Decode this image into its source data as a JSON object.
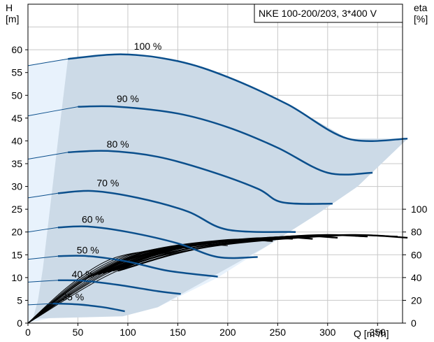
{
  "chart_data": {
    "type": "line",
    "title": "NKE 100-200/203, 3*400 V",
    "xlabel": "Q [m³/h]",
    "ylabel_left_top": "H",
    "ylabel_left_unit": "[m]",
    "ylabel_right_top": "eta",
    "ylabel_right_unit": "[%]",
    "xlim": [
      0,
      375
    ],
    "ylim": [
      0,
      70
    ],
    "eta_lim": [
      0,
      100
    ],
    "grid": true,
    "x_ticks": [
      "0",
      "50",
      "100",
      "150",
      "200",
      "250",
      "300",
      "350"
    ],
    "y_ticks": [
      "0",
      "5",
      "10",
      "15",
      "20",
      "25",
      "30",
      "35",
      "40",
      "45",
      "50",
      "55",
      "60"
    ],
    "eta_ticks": [
      "0",
      "20",
      "40",
      "60",
      "80",
      "100"
    ],
    "operating_area": {
      "outer_boundary": [
        [
          0,
          0
        ],
        [
          0,
          56.5
        ],
        [
          40,
          58
        ],
        [
          95,
          59
        ],
        [
          150,
          57.5
        ],
        [
          200,
          54
        ],
        [
          260,
          48
        ],
        [
          320,
          40.5
        ],
        [
          380,
          40.5
        ],
        [
          330,
          30
        ],
        [
          290,
          24
        ],
        [
          240,
          17
        ],
        [
          190,
          10
        ],
        [
          130,
          3.5
        ],
        [
          95,
          1.5
        ],
        [
          30,
          1.5
        ]
      ],
      "inner_boundary": [
        [
          40,
          58
        ],
        [
          30,
          40
        ],
        [
          22,
          25
        ],
        [
          15,
          12
        ],
        [
          10,
          5
        ],
        [
          5,
          1
        ]
      ]
    },
    "series": [
      {
        "name": "100 %",
        "label": "100 %",
        "points": [
          [
            0,
            56.5
          ],
          [
            40,
            58
          ],
          [
            95,
            59
          ],
          [
            150,
            57.5
          ],
          [
            200,
            54
          ],
          [
            260,
            48
          ],
          [
            320,
            40.5
          ],
          [
            380,
            40.5
          ]
        ]
      },
      {
        "name": "90 %",
        "label": "90 %",
        "points": [
          [
            0,
            45.5
          ],
          [
            50,
            47.5
          ],
          [
            90,
            47.5
          ],
          [
            150,
            46
          ],
          [
            200,
            43
          ],
          [
            250,
            38.5
          ],
          [
            300,
            33
          ],
          [
            345,
            33
          ]
        ]
      },
      {
        "name": "80 %",
        "label": "80 %",
        "points": [
          [
            0,
            36
          ],
          [
            40,
            37.5
          ],
          [
            80,
            37.8
          ],
          [
            130,
            36.5
          ],
          [
            180,
            33.5
          ],
          [
            230,
            29.5
          ],
          [
            255,
            26.5
          ],
          [
            305,
            26.2
          ]
        ]
      },
      {
        "name": "70 %",
        "label": "70 %",
        "points": [
          [
            0,
            27.5
          ],
          [
            30,
            28.5
          ],
          [
            65,
            29
          ],
          [
            110,
            27.5
          ],
          [
            160,
            24.5
          ],
          [
            200,
            20.5
          ],
          [
            268,
            20
          ]
        ]
      },
      {
        "name": "60 %",
        "label": "60 %",
        "points": [
          [
            0,
            20
          ],
          [
            30,
            21
          ],
          [
            60,
            21.2
          ],
          [
            100,
            20
          ],
          [
            150,
            17.5
          ],
          [
            190,
            14.5
          ],
          [
            230,
            14.5
          ]
        ]
      },
      {
        "name": "50 %",
        "label": "50 %",
        "points": [
          [
            0,
            14
          ],
          [
            30,
            14.7
          ],
          [
            60,
            14.7
          ],
          [
            100,
            13.5
          ],
          [
            140,
            11.5
          ],
          [
            190,
            10.2
          ]
        ]
      },
      {
        "name": "40 %",
        "label": "40 %",
        "points": [
          [
            0,
            9
          ],
          [
            30,
            9.4
          ],
          [
            55,
            9.3
          ],
          [
            90,
            8.4
          ],
          [
            130,
            7
          ],
          [
            153,
            6.4
          ]
        ]
      },
      {
        "name": "35 %",
        "label": "35 %",
        "points": [
          [
            0,
            4
          ],
          [
            25,
            4.3
          ],
          [
            50,
            4.1
          ],
          [
            75,
            3.5
          ],
          [
            97,
            2.6
          ]
        ]
      }
    ],
    "efficiency_curves": [
      {
        "points": [
          [
            0,
            0
          ],
          [
            40,
            32
          ],
          [
            80,
            55
          ],
          [
            120,
            63
          ],
          [
            145,
            60
          ]
        ]
      },
      {
        "points": [
          [
            0,
            0
          ],
          [
            45,
            34
          ],
          [
            90,
            57
          ],
          [
            140,
            66
          ],
          [
            170,
            65
          ]
        ]
      },
      {
        "points": [
          [
            0,
            0
          ],
          [
            50,
            36
          ],
          [
            100,
            59
          ],
          [
            160,
            69
          ],
          [
            200,
            68
          ]
        ]
      },
      {
        "points": [
          [
            0,
            0
          ],
          [
            55,
            38
          ],
          [
            110,
            61
          ],
          [
            180,
            71
          ],
          [
            220,
            71
          ]
        ]
      },
      {
        "points": [
          [
            0,
            0
          ],
          [
            60,
            40
          ],
          [
            120,
            63
          ],
          [
            200,
            73
          ],
          [
            245,
            72
          ]
        ]
      },
      {
        "points": [
          [
            0,
            0
          ],
          [
            65,
            42
          ],
          [
            130,
            64
          ],
          [
            220,
            74
          ],
          [
            265,
            74
          ]
        ]
      },
      {
        "points": [
          [
            0,
            0
          ],
          [
            70,
            43
          ],
          [
            140,
            65
          ],
          [
            240,
            75
          ],
          [
            285,
            74
          ]
        ]
      },
      {
        "points": [
          [
            0,
            0
          ],
          [
            75,
            44
          ],
          [
            150,
            66
          ],
          [
            260,
            76
          ],
          [
            310,
            75
          ]
        ]
      },
      {
        "points": [
          [
            0,
            0
          ],
          [
            80,
            45
          ],
          [
            160,
            67
          ],
          [
            280,
            77
          ],
          [
            340,
            76
          ]
        ]
      },
      {
        "points": [
          [
            0,
            0
          ],
          [
            85,
            46
          ],
          [
            170,
            67
          ],
          [
            300,
            77
          ],
          [
            370,
            76
          ]
        ]
      },
      {
        "points": [
          [
            0,
            0
          ],
          [
            90,
            46
          ],
          [
            180,
            67
          ],
          [
            310,
            77
          ],
          [
            380,
            75
          ]
        ]
      }
    ]
  }
}
